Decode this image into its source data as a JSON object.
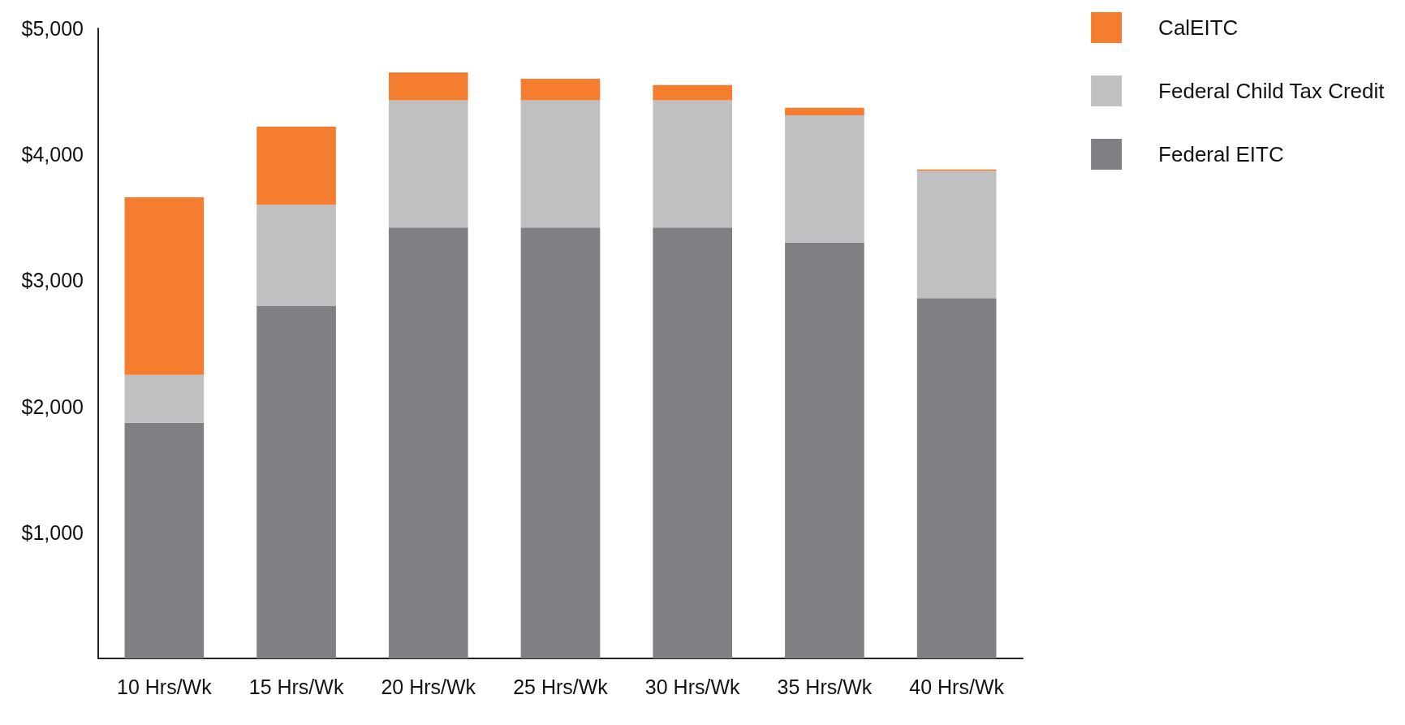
{
  "chart_data": {
    "type": "bar",
    "stacked": true,
    "categories": [
      "10 Hrs/Wk",
      "15 Hrs/Wk",
      "20 Hrs/Wk",
      "25 Hrs/Wk",
      "30 Hrs/Wk",
      "35 Hrs/Wk",
      "40 Hrs/Wk"
    ],
    "series": [
      {
        "name": "Federal EITC",
        "color": "#807f84",
        "values": [
          1870,
          2800,
          3420,
          3420,
          3420,
          3300,
          2860
        ]
      },
      {
        "name": "Federal Child Tax Credit",
        "color": "#bfc0c2",
        "values": [
          380,
          800,
          1010,
          1010,
          1010,
          1010,
          1010
        ]
      },
      {
        "name": "CalEITC",
        "color": "#f47d30",
        "values": [
          1410,
          620,
          220,
          170,
          120,
          60,
          10
        ]
      }
    ],
    "ylim": [
      0,
      5000
    ],
    "yticks": [
      {
        "value": 0,
        "label": null
      },
      {
        "value": 1000,
        "label": "$1,000"
      },
      {
        "value": 2000,
        "label": "$2,000"
      },
      {
        "value": 3000,
        "label": "$3,000"
      },
      {
        "value": 4000,
        "label": "$4,000"
      },
      {
        "value": 5000,
        "label": "$5,000"
      }
    ],
    "grid": false,
    "legend": "top right"
  }
}
